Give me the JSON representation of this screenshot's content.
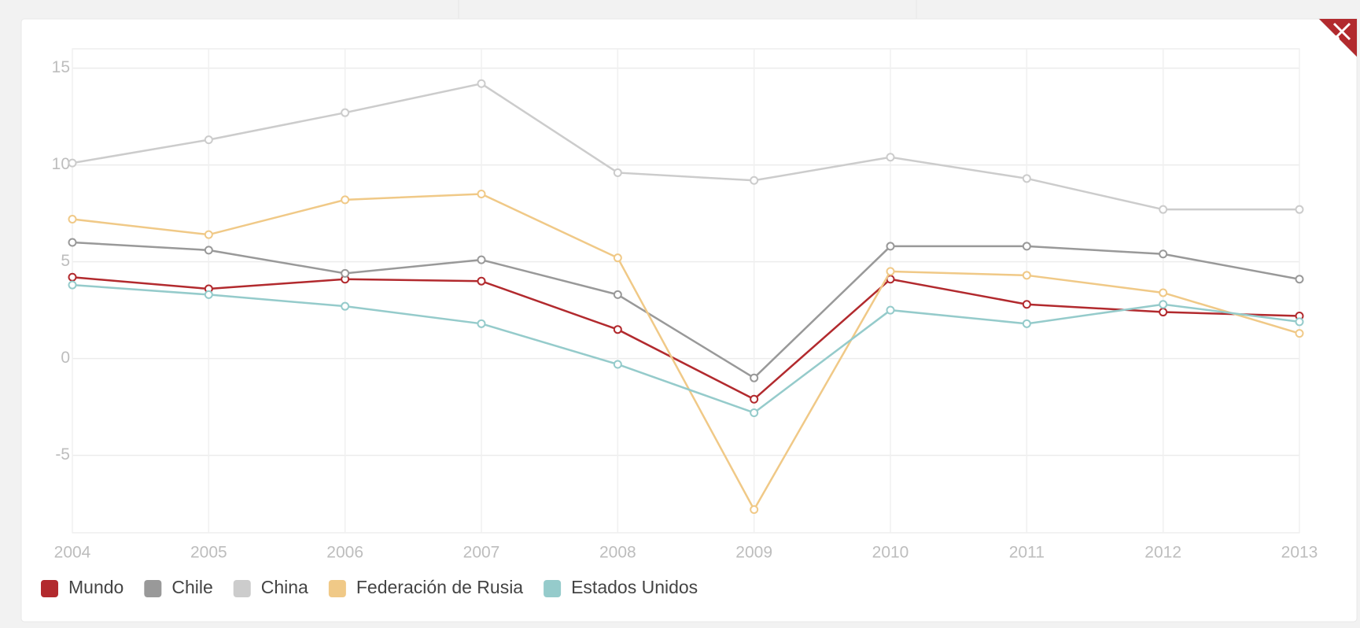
{
  "chart_data": {
    "type": "line",
    "categories": [
      "2004",
      "2005",
      "2006",
      "2007",
      "2008",
      "2009",
      "2010",
      "2011",
      "2012",
      "2013"
    ],
    "series": [
      {
        "name": "Mundo",
        "color": "#b22a2e",
        "values": [
          4.2,
          3.6,
          4.1,
          4.0,
          1.5,
          -2.1,
          4.1,
          2.8,
          2.4,
          2.2
        ]
      },
      {
        "name": "Chile",
        "color": "#999999",
        "values": [
          6.0,
          5.6,
          4.4,
          5.1,
          3.3,
          -1.0,
          5.8,
          5.8,
          5.4,
          4.1
        ]
      },
      {
        "name": "China",
        "color": "#cccccc",
        "values": [
          10.1,
          11.3,
          12.7,
          14.2,
          9.6,
          9.2,
          10.4,
          9.3,
          7.7,
          7.7
        ]
      },
      {
        "name": "Federación de Rusia",
        "color": "#f0c987",
        "values": [
          7.2,
          6.4,
          8.2,
          8.5,
          5.2,
          -7.8,
          4.5,
          4.3,
          3.4,
          1.3
        ]
      },
      {
        "name": "Estados Unidos",
        "color": "#95cbcb",
        "values": [
          3.8,
          3.3,
          2.7,
          1.8,
          -0.3,
          -2.8,
          2.5,
          1.8,
          2.8,
          1.9
        ]
      }
    ],
    "ylim": [
      -9,
      16
    ],
    "yticks": [
      -5,
      0,
      5,
      10,
      15
    ],
    "grid": true,
    "legend": "bottom"
  }
}
